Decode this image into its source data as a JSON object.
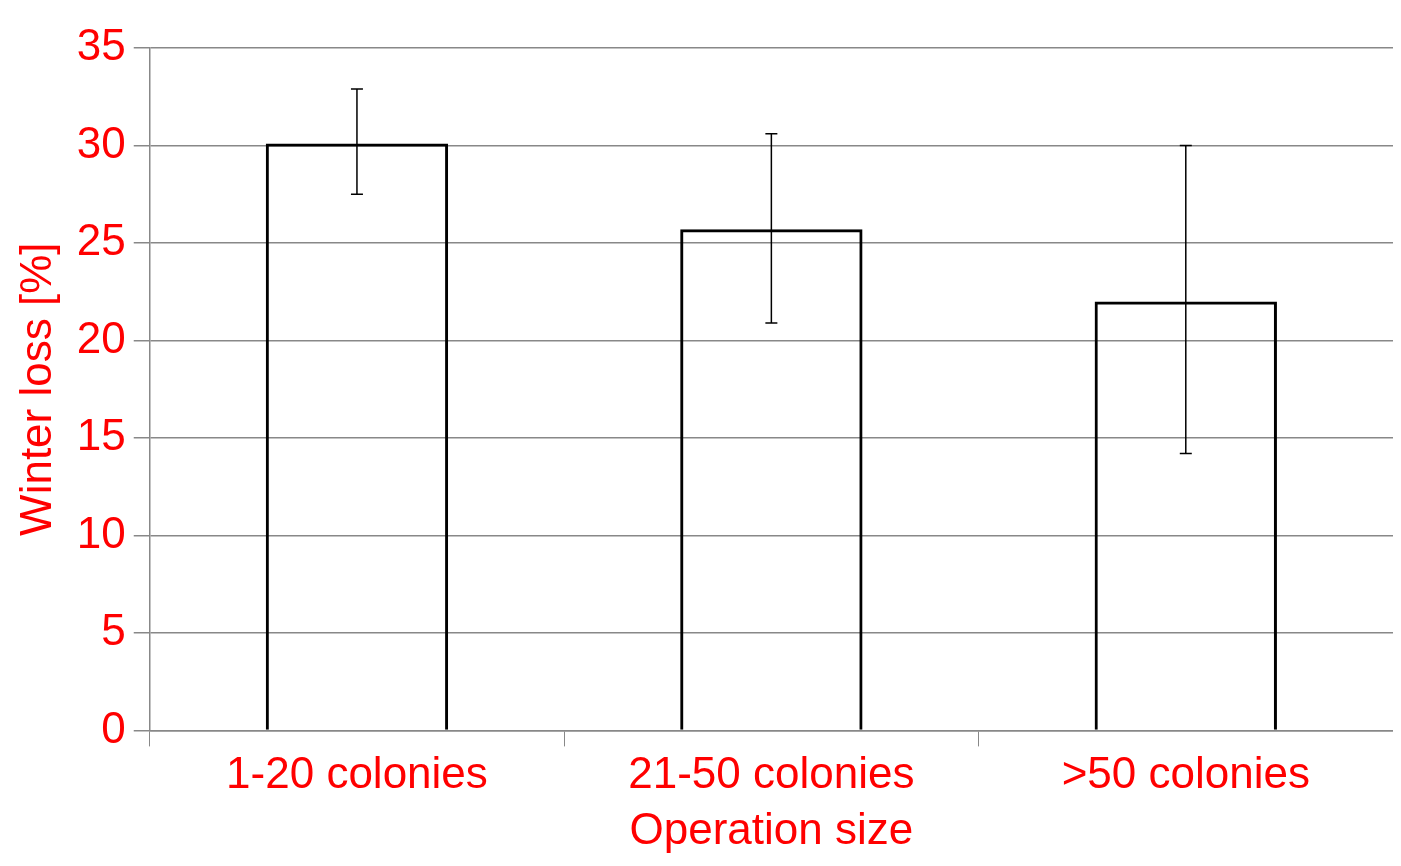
{
  "chart_data": {
    "type": "bar",
    "xlabel": "Operation size",
    "ylabel": "Winter loss [%]",
    "categories": [
      "1-20 colonies",
      "21-50 colonies",
      ">50 colonies"
    ],
    "values": [
      30.1,
      25.7,
      22.0
    ],
    "errors": [
      [
        27.5,
        32.9
      ],
      [
        20.9,
        30.6
      ],
      [
        14.2,
        30.0
      ]
    ],
    "color": "#000000",
    "ylim": [
      0,
      35
    ],
    "yticks": [
      0,
      5,
      10,
      15,
      20,
      25,
      30,
      35
    ],
    "grid": "y",
    "legend": false
  }
}
